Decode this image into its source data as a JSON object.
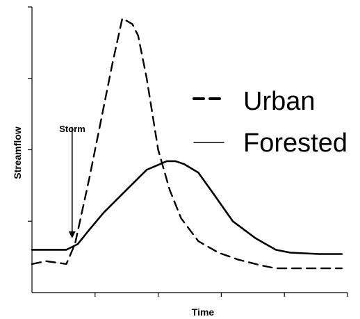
{
  "chart_data": {
    "type": "line",
    "title": "",
    "xlabel": "Time",
    "ylabel": "Streamflow",
    "xlim": [
      0,
      11
    ],
    "ylim": [
      0,
      10
    ],
    "x_ticks_shown": 5,
    "y_ticks_shown": 4,
    "tick_labels_shown": false,
    "grid": false,
    "legend_position": "top-right",
    "annotation": {
      "text": "Storm",
      "arrow_at_x": 1.4,
      "arrow_from_y": 5.8,
      "arrow_to_y": 1.9
    },
    "series": [
      {
        "name": "Urban",
        "style": "dashed",
        "color": "#000000",
        "x": [
          0,
          0.5,
          1.2,
          1.5,
          2.0,
          2.4,
          2.8,
          3.15,
          3.5,
          3.7,
          4.0,
          4.4,
          4.8,
          5.2,
          5.8,
          6.5,
          7.2,
          8.0,
          8.5,
          9.0,
          10.0,
          10.8
        ],
        "y": [
          1.0,
          1.1,
          1.0,
          1.7,
          4.0,
          6.0,
          8.0,
          9.6,
          9.4,
          9.0,
          7.5,
          5.0,
          3.6,
          2.6,
          1.8,
          1.4,
          1.15,
          0.95,
          0.85,
          0.85,
          0.85,
          0.85
        ]
      },
      {
        "name": "Forested",
        "style": "solid",
        "color": "#000000",
        "x": [
          0,
          0.8,
          1.2,
          1.6,
          2.0,
          2.5,
          3.2,
          4.0,
          4.7,
          5.0,
          5.3,
          5.8,
          6.3,
          7.0,
          7.8,
          8.5,
          9.0,
          10.0,
          10.8
        ],
        "y": [
          1.5,
          1.5,
          1.5,
          1.7,
          2.2,
          2.8,
          3.5,
          4.3,
          4.6,
          4.6,
          4.5,
          4.2,
          3.5,
          2.5,
          1.9,
          1.5,
          1.4,
          1.35,
          1.35
        ]
      }
    ]
  }
}
